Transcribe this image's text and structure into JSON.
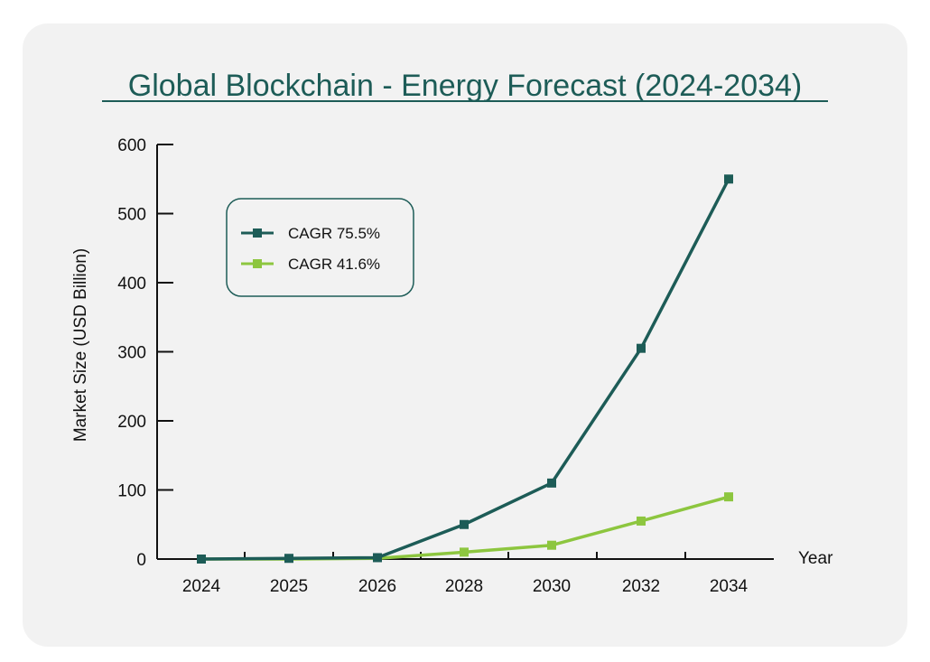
{
  "chart_data": {
    "type": "line",
    "title": "Global Blockchain - Energy Forecast (2024-2034)",
    "xlabel": "Year",
    "ylabel": "Market Size (USD Billion)",
    "categories": [
      "2024",
      "2025",
      "2026",
      "2028",
      "2030",
      "2032",
      "2034"
    ],
    "ylim": [
      0,
      600
    ],
    "yticks": [
      0,
      100,
      200,
      300,
      400,
      500,
      600
    ],
    "grid": false,
    "legend_position": "top-left",
    "series": [
      {
        "name": "CAGR 75.5%",
        "color": "#1d5c57",
        "values": [
          0,
          1,
          2,
          50,
          110,
          305,
          550
        ]
      },
      {
        "name": "CAGR 41.6%",
        "color": "#8dc63f",
        "values": [
          0,
          0,
          1,
          10,
          20,
          55,
          90
        ]
      }
    ]
  }
}
